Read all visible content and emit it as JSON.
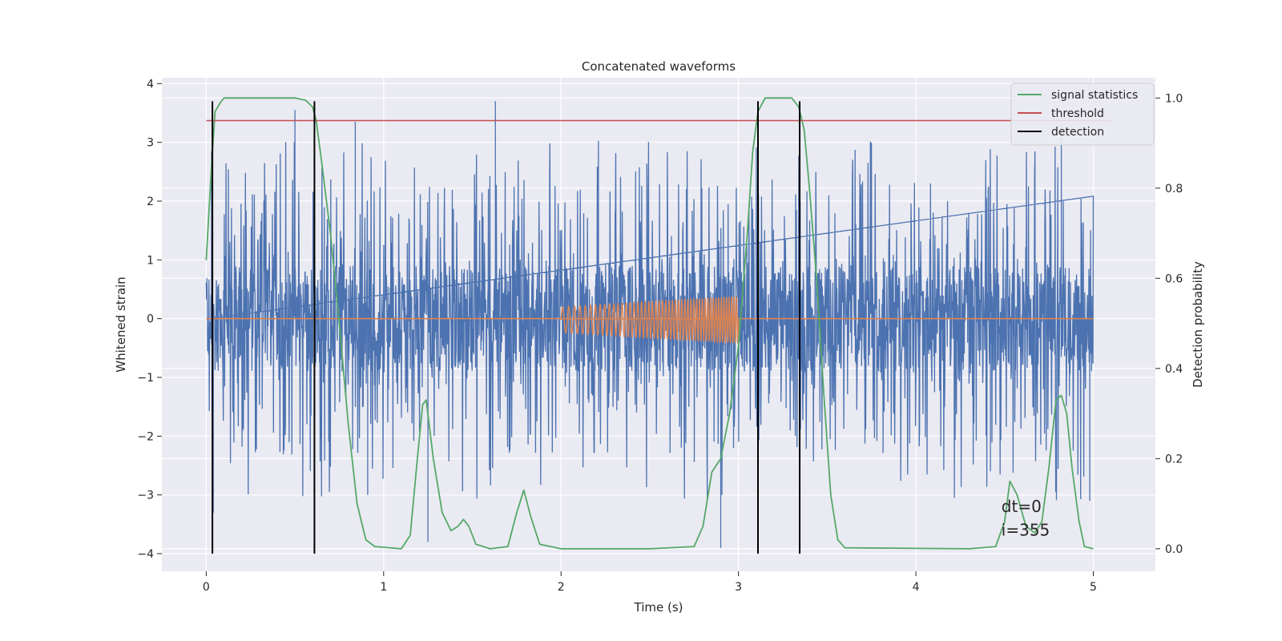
{
  "chart_data": {
    "type": "line",
    "title": "Concatenated waveforms",
    "xlabel": "Time (s)",
    "ylabel_left": "Whitened strain",
    "ylabel_right": "Detection probability",
    "xlim": [
      -0.25,
      5.35
    ],
    "ylim_left": [
      -4.3,
      4.1
    ],
    "ylim_right": [
      -0.05,
      1.045
    ],
    "x_ticks": [
      0,
      1,
      2,
      3,
      4,
      5
    ],
    "y_left_ticks": [
      -4,
      -3,
      -2,
      -1,
      0,
      1,
      2,
      3,
      4
    ],
    "y_left_tick_labels": [
      "−4",
      "−3",
      "−2",
      "−1",
      "0",
      "1",
      "2",
      "3",
      "4"
    ],
    "y_right_ticks": [
      0.0,
      0.2,
      0.4,
      0.6,
      0.8,
      1.0
    ],
    "y_right_tick_labels": [
      "0.0",
      "0.2",
      "0.4",
      "0.6",
      "0.8",
      "1.0"
    ],
    "grid": true,
    "legend_position": "top-right",
    "colors": {
      "background": "#eaeaf2",
      "grid": "#ffffff",
      "strain": "#4c72b0",
      "template": "#dd8452",
      "signal_statistics": "#55a868",
      "threshold": "#c44e52",
      "detection": "#000000"
    },
    "series": [
      {
        "name": "",
        "axis": "left",
        "kind": "noise",
        "x_range": [
          0,
          5
        ],
        "core_amplitude": 0.9,
        "peak_values": [
          {
            "x": 0.03,
            "y": 2.85
          },
          {
            "x": 0.04,
            "y": -3.3
          },
          {
            "x": 0.5,
            "y": 3.55
          },
          {
            "x": 0.84,
            "y": 3.35
          },
          {
            "x": 0.91,
            "y": -3.0
          },
          {
            "x": 1.25,
            "y": -3.8
          },
          {
            "x": 1.63,
            "y": 3.7
          },
          {
            "x": 2.9,
            "y": -3.9
          },
          {
            "x": 4.42,
            "y": -2.6
          },
          {
            "x": 4.98,
            "y": -3.1
          },
          {
            "x": 4.82,
            "y": 3.3
          }
        ]
      },
      {
        "name": "",
        "axis": "left",
        "kind": "chirp",
        "x_range": [
          2.0,
          3.0
        ],
        "amplitude_start": 0.22,
        "amplitude_end": 0.4,
        "baseline": 0
      },
      {
        "name": "signal statistics",
        "axis": "right",
        "kind": "curve",
        "points": [
          [
            0.0,
            0.64
          ],
          [
            0.03,
            0.85
          ],
          [
            0.05,
            0.97
          ],
          [
            0.08,
            0.99
          ],
          [
            0.1,
            1.0
          ],
          [
            0.5,
            1.0
          ],
          [
            0.56,
            0.995
          ],
          [
            0.6,
            0.98
          ],
          [
            0.62,
            0.95
          ],
          [
            0.65,
            0.86
          ],
          [
            0.7,
            0.7
          ],
          [
            0.75,
            0.5
          ],
          [
            0.8,
            0.28
          ],
          [
            0.85,
            0.1
          ],
          [
            0.9,
            0.02
          ],
          [
            0.95,
            0.005
          ],
          [
            1.1,
            0.0
          ],
          [
            1.15,
            0.03
          ],
          [
            1.19,
            0.2
          ],
          [
            1.22,
            0.32
          ],
          [
            1.24,
            0.33
          ],
          [
            1.28,
            0.2
          ],
          [
            1.33,
            0.08
          ],
          [
            1.38,
            0.04
          ],
          [
            1.42,
            0.05
          ],
          [
            1.45,
            0.065
          ],
          [
            1.48,
            0.05
          ],
          [
            1.52,
            0.01
          ],
          [
            1.6,
            0.0
          ],
          [
            1.7,
            0.005
          ],
          [
            1.75,
            0.08
          ],
          [
            1.79,
            0.13
          ],
          [
            1.83,
            0.07
          ],
          [
            1.88,
            0.01
          ],
          [
            2.0,
            0.0
          ],
          [
            2.5,
            0.0
          ],
          [
            2.75,
            0.005
          ],
          [
            2.8,
            0.05
          ],
          [
            2.85,
            0.17
          ],
          [
            2.9,
            0.2
          ],
          [
            2.95,
            0.3
          ],
          [
            3.0,
            0.45
          ],
          [
            3.05,
            0.7
          ],
          [
            3.08,
            0.88
          ],
          [
            3.11,
            0.97
          ],
          [
            3.15,
            1.0
          ],
          [
            3.3,
            1.0
          ],
          [
            3.34,
            0.98
          ],
          [
            3.37,
            0.93
          ],
          [
            3.4,
            0.8
          ],
          [
            3.44,
            0.6
          ],
          [
            3.48,
            0.35
          ],
          [
            3.52,
            0.12
          ],
          [
            3.56,
            0.02
          ],
          [
            3.6,
            0.002
          ],
          [
            4.3,
            0.0
          ],
          [
            4.45,
            0.005
          ],
          [
            4.5,
            0.06
          ],
          [
            4.53,
            0.15
          ],
          [
            4.57,
            0.12
          ],
          [
            4.62,
            0.05
          ],
          [
            4.67,
            0.035
          ],
          [
            4.71,
            0.06
          ],
          [
            4.75,
            0.18
          ],
          [
            4.79,
            0.33
          ],
          [
            4.82,
            0.34
          ],
          [
            4.85,
            0.3
          ],
          [
            4.88,
            0.18
          ],
          [
            4.92,
            0.06
          ],
          [
            4.95,
            0.005
          ],
          [
            5.0,
            0.0
          ]
        ]
      },
      {
        "name": "threshold",
        "axis": "right",
        "kind": "hline",
        "value": 0.95,
        "x_range": [
          0,
          5
        ]
      },
      {
        "name": "detection",
        "axis": "left",
        "kind": "vlines",
        "x_values": [
          0.035,
          0.61,
          3.11,
          3.345
        ],
        "y_range": [
          -4,
          3.7
        ]
      }
    ],
    "annotations": [
      {
        "text": "dt=0",
        "x": 4.5,
        "y": -3.1
      },
      {
        "text": "i=355",
        "x": 4.5,
        "y": -3.5
      }
    ]
  }
}
